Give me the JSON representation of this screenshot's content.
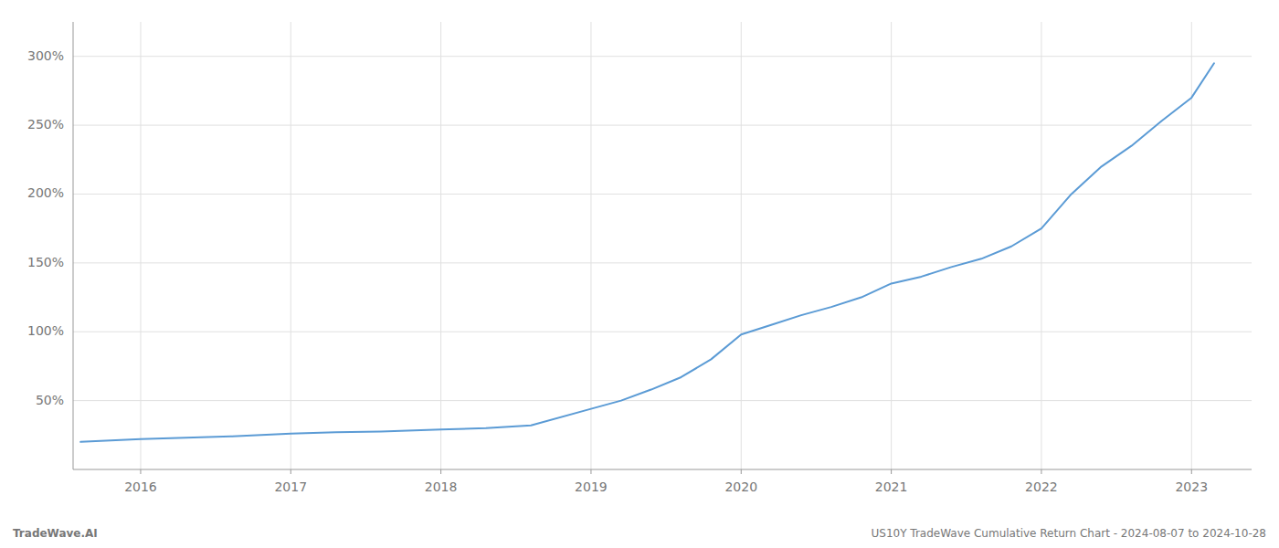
{
  "chart_data": {
    "type": "line",
    "x": [
      2015.6,
      2016.0,
      2016.3,
      2016.6,
      2017.0,
      2017.3,
      2017.6,
      2018.0,
      2018.3,
      2018.6,
      2019.0,
      2019.2,
      2019.4,
      2019.6,
      2019.8,
      2020.0,
      2020.2,
      2020.4,
      2020.6,
      2020.8,
      2021.0,
      2021.2,
      2021.4,
      2021.6,
      2021.8,
      2022.0,
      2022.2,
      2022.4,
      2022.6,
      2022.8,
      2023.0,
      2023.15
    ],
    "values": [
      20,
      22,
      23,
      24,
      26,
      27,
      27.5,
      29,
      30,
      32,
      44,
      50,
      58,
      67,
      80,
      98,
      105,
      112,
      118,
      125,
      135,
      140,
      147,
      153,
      162,
      175,
      200,
      220,
      235,
      253,
      270,
      295
    ],
    "color": "#5b9bd5",
    "xlim": [
      2015.55,
      2023.4
    ],
    "xticks": [
      2016,
      2017,
      2018,
      2019,
      2020,
      2021,
      2022,
      2023
    ],
    "ylim": [
      0,
      325
    ],
    "yticks": [
      {
        "value": 50,
        "label": "50%"
      },
      {
        "value": 100,
        "label": "100%"
      },
      {
        "value": 150,
        "label": "150%"
      },
      {
        "value": 200,
        "label": "200%"
      },
      {
        "value": 250,
        "label": "250%"
      },
      {
        "value": 300,
        "label": "300%"
      }
    ],
    "grid": true,
    "annotations": [
      "TradeWave.AI",
      "US10Y TradeWave Cumulative Return Chart - 2024-08-07 to 2024-10-28"
    ]
  }
}
